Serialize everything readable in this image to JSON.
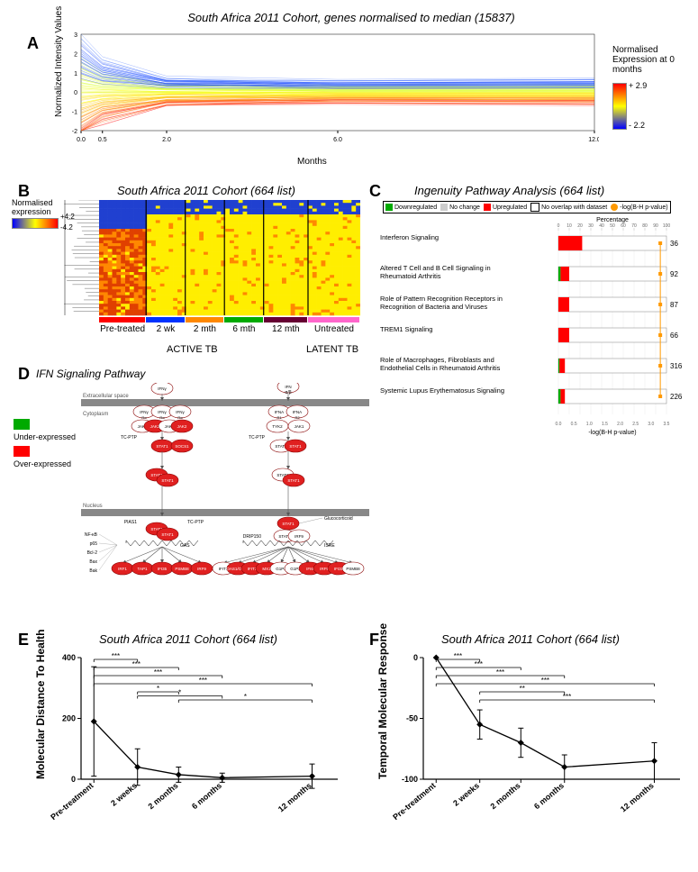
{
  "panelA": {
    "title": "South Africa 2011 Cohort, genes normalised to median (15837)",
    "xlabel": "Months",
    "ylabel": "Normalized Intensity Values",
    "xlim": [
      0,
      12
    ],
    "xticks": [
      0.0,
      0.5,
      2.0,
      6.0,
      12.0
    ],
    "ylim": [
      -2,
      3
    ],
    "yticks": [
      -2,
      -1,
      0,
      1,
      2,
      3
    ],
    "colorbar_label": "Normalised Expression at 0 months",
    "colorbar_high": "+ 2.9",
    "colorbar_low": "- 2.2",
    "line_colors": [
      "#ff0000",
      "#ff6600",
      "#ffcc00",
      "#ffff00",
      "#ccff33",
      "#0033ff",
      "#3366ff"
    ]
  },
  "panelB": {
    "title": "South Africa 2011 Cohort (664 list)",
    "colorbar_label": "Normalised expression",
    "colorbar_high": "+4.2",
    "colorbar_low": "-4.2",
    "timepoints": [
      "Pre-treated",
      "2 wk",
      "2 mth",
      "6 mth",
      "12 mth",
      "Untreated"
    ],
    "group_labels": {
      "active": "ACTIVE TB",
      "latent": "LATENT TB"
    },
    "bar_colors": [
      "#ff0000",
      "#0033ff",
      "#ff8800",
      "#00aa00",
      "#660033",
      "#ff66cc"
    ]
  },
  "panelC": {
    "title": "Ingenuity Pathway Analysis (664 list)",
    "legend": {
      "down": "Downregulated",
      "down_color": "#00aa00",
      "nc": "No change",
      "nc_color": "#cccccc",
      "up": "Upregulated",
      "up_color": "#ff0000",
      "no_overlap": "No overlap with dataset",
      "no_overlap_color": "#ffffff",
      "logp": "-log(B-H p-value)",
      "logp_color": "#ff9900"
    },
    "xlabel_top": "Percentage",
    "xlabel_bottom": "-log(B-H p-value)",
    "xticks_top": [
      0,
      10,
      20,
      30,
      40,
      50,
      60,
      70,
      80,
      90,
      100
    ],
    "xticks_bottom": [
      0.0,
      0.5,
      1.0,
      1.5,
      2.0,
      2.5,
      3.0,
      3.5
    ],
    "pathways": [
      {
        "name": "Interferon Signaling",
        "up": 22,
        "down": 0,
        "nc": 0,
        "count": 36,
        "logp": 3.3
      },
      {
        "name": "Altered T Cell and B Cell Signaling in Rheumatoid Arthritis",
        "up": 8,
        "down": 2,
        "nc": 0,
        "count": 92,
        "logp": 3.3
      },
      {
        "name": "Role of Pattern Recognition Receptors in Recognition of Bacteria and Viruses",
        "up": 10,
        "down": 0,
        "nc": 0,
        "count": 87,
        "logp": 3.3
      },
      {
        "name": "TREM1 Signaling",
        "up": 10,
        "down": 0,
        "nc": 0,
        "count": 66,
        "logp": 3.3
      },
      {
        "name": "Role of Macrophages, Fibroblasts and Endothelial Cells in Rheumatoid Arthritis",
        "up": 5,
        "down": 1,
        "nc": 0,
        "count": 316,
        "logp": 3.3
      },
      {
        "name": "Systemic Lupus Erythematosus Signaling",
        "up": 4,
        "down": 2,
        "nc": 0,
        "count": 226,
        "logp": 3.3
      }
    ]
  },
  "panelD": {
    "title": "IFN Signaling Pathway",
    "compartments": [
      "Extracellular space",
      "Cytoplasm",
      "Nucleus"
    ],
    "legend": {
      "under": "Under-expressed",
      "under_color": "#00aa00",
      "over": "Over-expressed",
      "over_color": "#ff0000"
    },
    "nodes_left_top": [
      "IFNγ"
    ],
    "nodes_left_receptor": [
      "IFNγ",
      "IFNγ",
      "IFNγ",
      "Rα",
      "Rα",
      "Rα"
    ],
    "nodes_left_mid": [
      "JAK1",
      "JAK2",
      "JAK1",
      "JAK2",
      "TC-PTP",
      "STAT1",
      "SOCS1"
    ],
    "nodes_left_bottom": [
      "STAT1",
      "STAT1"
    ],
    "nodes_right_top": [
      "IFN",
      "α/β"
    ],
    "nodes_right_receptor": [
      "IFNA",
      "IFNA",
      "R1",
      "R2"
    ],
    "nodes_right_mid": [
      "TYK2",
      "JAK1",
      "TC-PTP",
      "STAT2",
      "STAT1"
    ],
    "nodes_right_bottom": [
      "STAT2",
      "STAT1"
    ],
    "nucleus_left_labels": [
      "PIAS1",
      "TC-PTP",
      "STAT1",
      "STAT1",
      "GAS"
    ],
    "nucleus_left_side": [
      "NF-κB",
      "p65",
      "Bcl-2",
      "Bax",
      "Bak"
    ],
    "nucleus_left_targets": [
      "IRF1",
      "TAP1",
      "IFI35",
      "PSMB8",
      "IRF9"
    ],
    "nucleus_right_labels": [
      "STAT1",
      "Glucocorticoid",
      "DRIP150",
      "STAT2",
      "IRF9",
      "ISRE"
    ],
    "nucleus_right_targets": [
      "IFIT1",
      "OAS1/OAS1",
      "IFIT3",
      "MX1",
      "G1P2",
      "G1P3",
      "IFI6",
      "IRF9",
      "IFI35",
      "PSMB8"
    ]
  },
  "panelE": {
    "title": "South Africa 2011 Cohort (664 list)",
    "ylabel": "Molecular Distance To Health",
    "ylim": [
      0,
      400
    ],
    "yticks": [
      0,
      200,
      400
    ],
    "xticks": [
      "Pre-treatment",
      "2 weeks",
      "2 months",
      "6 months",
      "12 months"
    ],
    "values": [
      190,
      40,
      15,
      5,
      10
    ],
    "err": [
      180,
      60,
      25,
      15,
      40
    ],
    "sig_bars": [
      {
        "from": 0,
        "to": 1,
        "level": 5,
        "label": "***"
      },
      {
        "from": 0,
        "to": 2,
        "level": 4,
        "label": "***"
      },
      {
        "from": 0,
        "to": 3,
        "level": 3,
        "label": "***"
      },
      {
        "from": 0,
        "to": 4,
        "level": 2,
        "label": "***"
      },
      {
        "from": 1,
        "to": 2,
        "level": 1,
        "label": "*"
      },
      {
        "from": 1,
        "to": 3,
        "level": 0.5,
        "label": "*"
      },
      {
        "from": 2,
        "to": 4,
        "level": 0,
        "label": "*"
      }
    ]
  },
  "panelF": {
    "title": "South Africa 2011 Cohort (664 list)",
    "ylabel": "Temporal Molecular Response",
    "ylim": [
      -100,
      0
    ],
    "yticks": [
      -100,
      -50,
      0
    ],
    "xticks": [
      "Pre-treatment",
      "2 weeks",
      "2 months",
      "6 months",
      "12 months"
    ],
    "values": [
      0,
      -55,
      -70,
      -90,
      -85
    ],
    "err": [
      0,
      12,
      12,
      10,
      15
    ],
    "sig_bars": [
      {
        "from": 0,
        "to": 1,
        "level": 5,
        "label": "***"
      },
      {
        "from": 0,
        "to": 2,
        "level": 4,
        "label": "***"
      },
      {
        "from": 0,
        "to": 3,
        "level": 3,
        "label": "***"
      },
      {
        "from": 0,
        "to": 4,
        "level": 2,
        "label": "***"
      },
      {
        "from": 1,
        "to": 3,
        "level": 1,
        "label": "**"
      },
      {
        "from": 1,
        "to": 4,
        "level": 0,
        "label": "***"
      }
    ]
  }
}
